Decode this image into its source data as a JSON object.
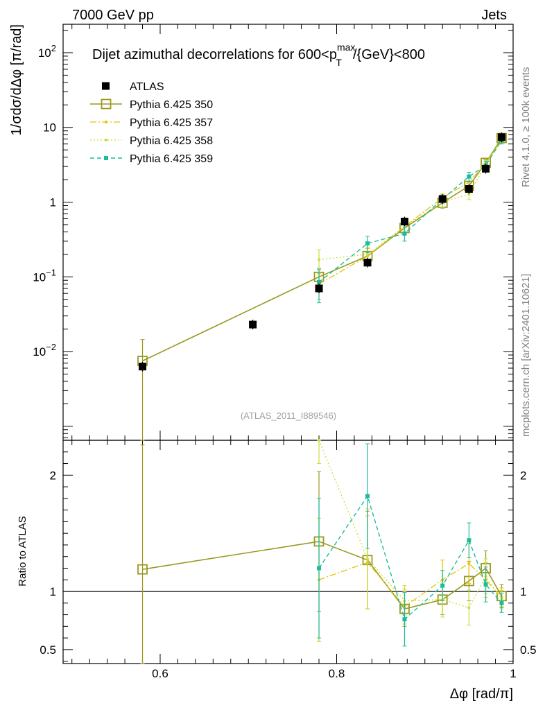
{
  "header": {
    "left": "7000 GeV pp",
    "right": "Jets"
  },
  "title": {
    "main": "Dijet azimuthal decorrelations for 600<p",
    "sup": "max",
    "sub": "T",
    "tail": "/{GeV}<800"
  },
  "ylabel_main": "1/σdσ/dΔφ [π/rad]",
  "ylabel_ratio": "Ratio to ATLAS",
  "xlabel": "Δφ [rad/π]",
  "watermark": "(ATLAS_2011_I889546)",
  "side_text_top": "Rivet 4.1.0, ≥ 100k events",
  "side_text_bottom": "mcplots.cern.ch [arXiv:2401.10621]",
  "colors": {
    "data": "#000000",
    "p350": "#999922",
    "p357": "#e6c200",
    "p358": "#cddc39",
    "p359": "#1abc9c"
  },
  "chart_data": {
    "type": "line",
    "x_axis": {
      "range": [
        0.49,
        1.0
      ],
      "ticks": [
        0.6,
        0.8,
        1
      ],
      "tick_labels": [
        "0.6",
        "0.8",
        "1"
      ]
    },
    "y_axis_main": {
      "scale": "log",
      "range": [
        0.00065,
        240
      ],
      "tick_labels": [
        "10^-2",
        "10^-1",
        "1",
        "10",
        "10^2"
      ]
    },
    "y_axis_ratio": {
      "range": [
        0.38,
        2.3
      ],
      "ticks": [
        0.5,
        1,
        2
      ],
      "tick_labels": [
        "0.5",
        "1",
        "2"
      ]
    },
    "legend": [
      "ATLAS",
      "Pythia 6.425 350",
      "Pythia 6.425 357",
      "Pythia 6.425 358",
      "Pythia 6.425 359"
    ],
    "data": {
      "name": "ATLAS",
      "x": [
        0.58,
        0.705,
        0.78,
        0.835,
        0.877,
        0.92,
        0.95,
        0.969,
        0.987
      ],
      "y": [
        0.0063,
        0.023,
        0.07,
        0.155,
        0.55,
        1.1,
        1.5,
        2.8,
        7.4
      ]
    },
    "series": [
      {
        "name": "Pythia 6.425 350",
        "x": [
          0.58,
          0.78,
          0.835,
          0.877,
          0.92,
          0.95,
          0.969,
          0.987
        ],
        "y": [
          0.0075,
          0.1,
          0.19,
          0.45,
          0.98,
          1.65,
          3.35,
          7.2
        ],
        "err": [
          0.007,
          0.03,
          0.05,
          0.07,
          0.15,
          0.25,
          0.4,
          0.7
        ],
        "ratio": [
          1.19,
          1.43,
          1.27,
          0.85,
          0.93,
          1.09,
          1.2,
          0.96
        ],
        "ratio_err": [
          1.07,
          0.6,
          0.42,
          0.15,
          0.13,
          0.17,
          0.15,
          0.1
        ]
      },
      {
        "name": "Pythia 6.425 357",
        "x": [
          0.78,
          0.835,
          0.877,
          0.92,
          0.95,
          0.969,
          0.987
        ],
        "y": [
          0.08,
          0.19,
          0.47,
          1.15,
          1.85,
          3.3,
          6.9
        ],
        "err": [
          0.03,
          0.05,
          0.08,
          0.15,
          0.25,
          0.4,
          0.7
        ],
        "ratio": [
          1.1,
          1.25,
          0.87,
          1.1,
          1.24,
          1.1,
          0.95
        ],
        "ratio_err": [
          0.53,
          0.4,
          0.15,
          0.17,
          0.17,
          0.15,
          0.08
        ]
      },
      {
        "name": "Pythia 6.425 358",
        "x": [
          0.78,
          0.835,
          0.877,
          0.92,
          0.95,
          0.969,
          0.987
        ],
        "y": [
          0.17,
          0.2,
          0.47,
          1.0,
          1.28,
          3.2,
          6.8
        ],
        "err": [
          0.06,
          0.05,
          0.08,
          0.15,
          0.2,
          0.4,
          0.7
        ],
        "ratio": [
          2.3,
          1.28,
          0.92,
          0.93,
          0.86,
          1.13,
          0.93
        ],
        "ratio_err": [
          0.2,
          0.43,
          0.13,
          0.15,
          0.15,
          0.15,
          0.08
        ]
      },
      {
        "name": "Pythia 6.425 359",
        "x": [
          0.78,
          0.835,
          0.877,
          0.92,
          0.95,
          0.969,
          0.987
        ],
        "y": [
          0.085,
          0.28,
          0.38,
          1.1,
          2.2,
          3.1,
          6.7
        ],
        "err": [
          0.04,
          0.07,
          0.08,
          0.15,
          0.3,
          0.4,
          0.7
        ],
        "ratio": [
          1.2,
          1.82,
          0.76,
          1.05,
          1.44,
          1.06,
          0.9
        ],
        "ratio_err": [
          0.6,
          0.45,
          0.23,
          0.13,
          0.15,
          0.15,
          0.08
        ]
      }
    ]
  }
}
